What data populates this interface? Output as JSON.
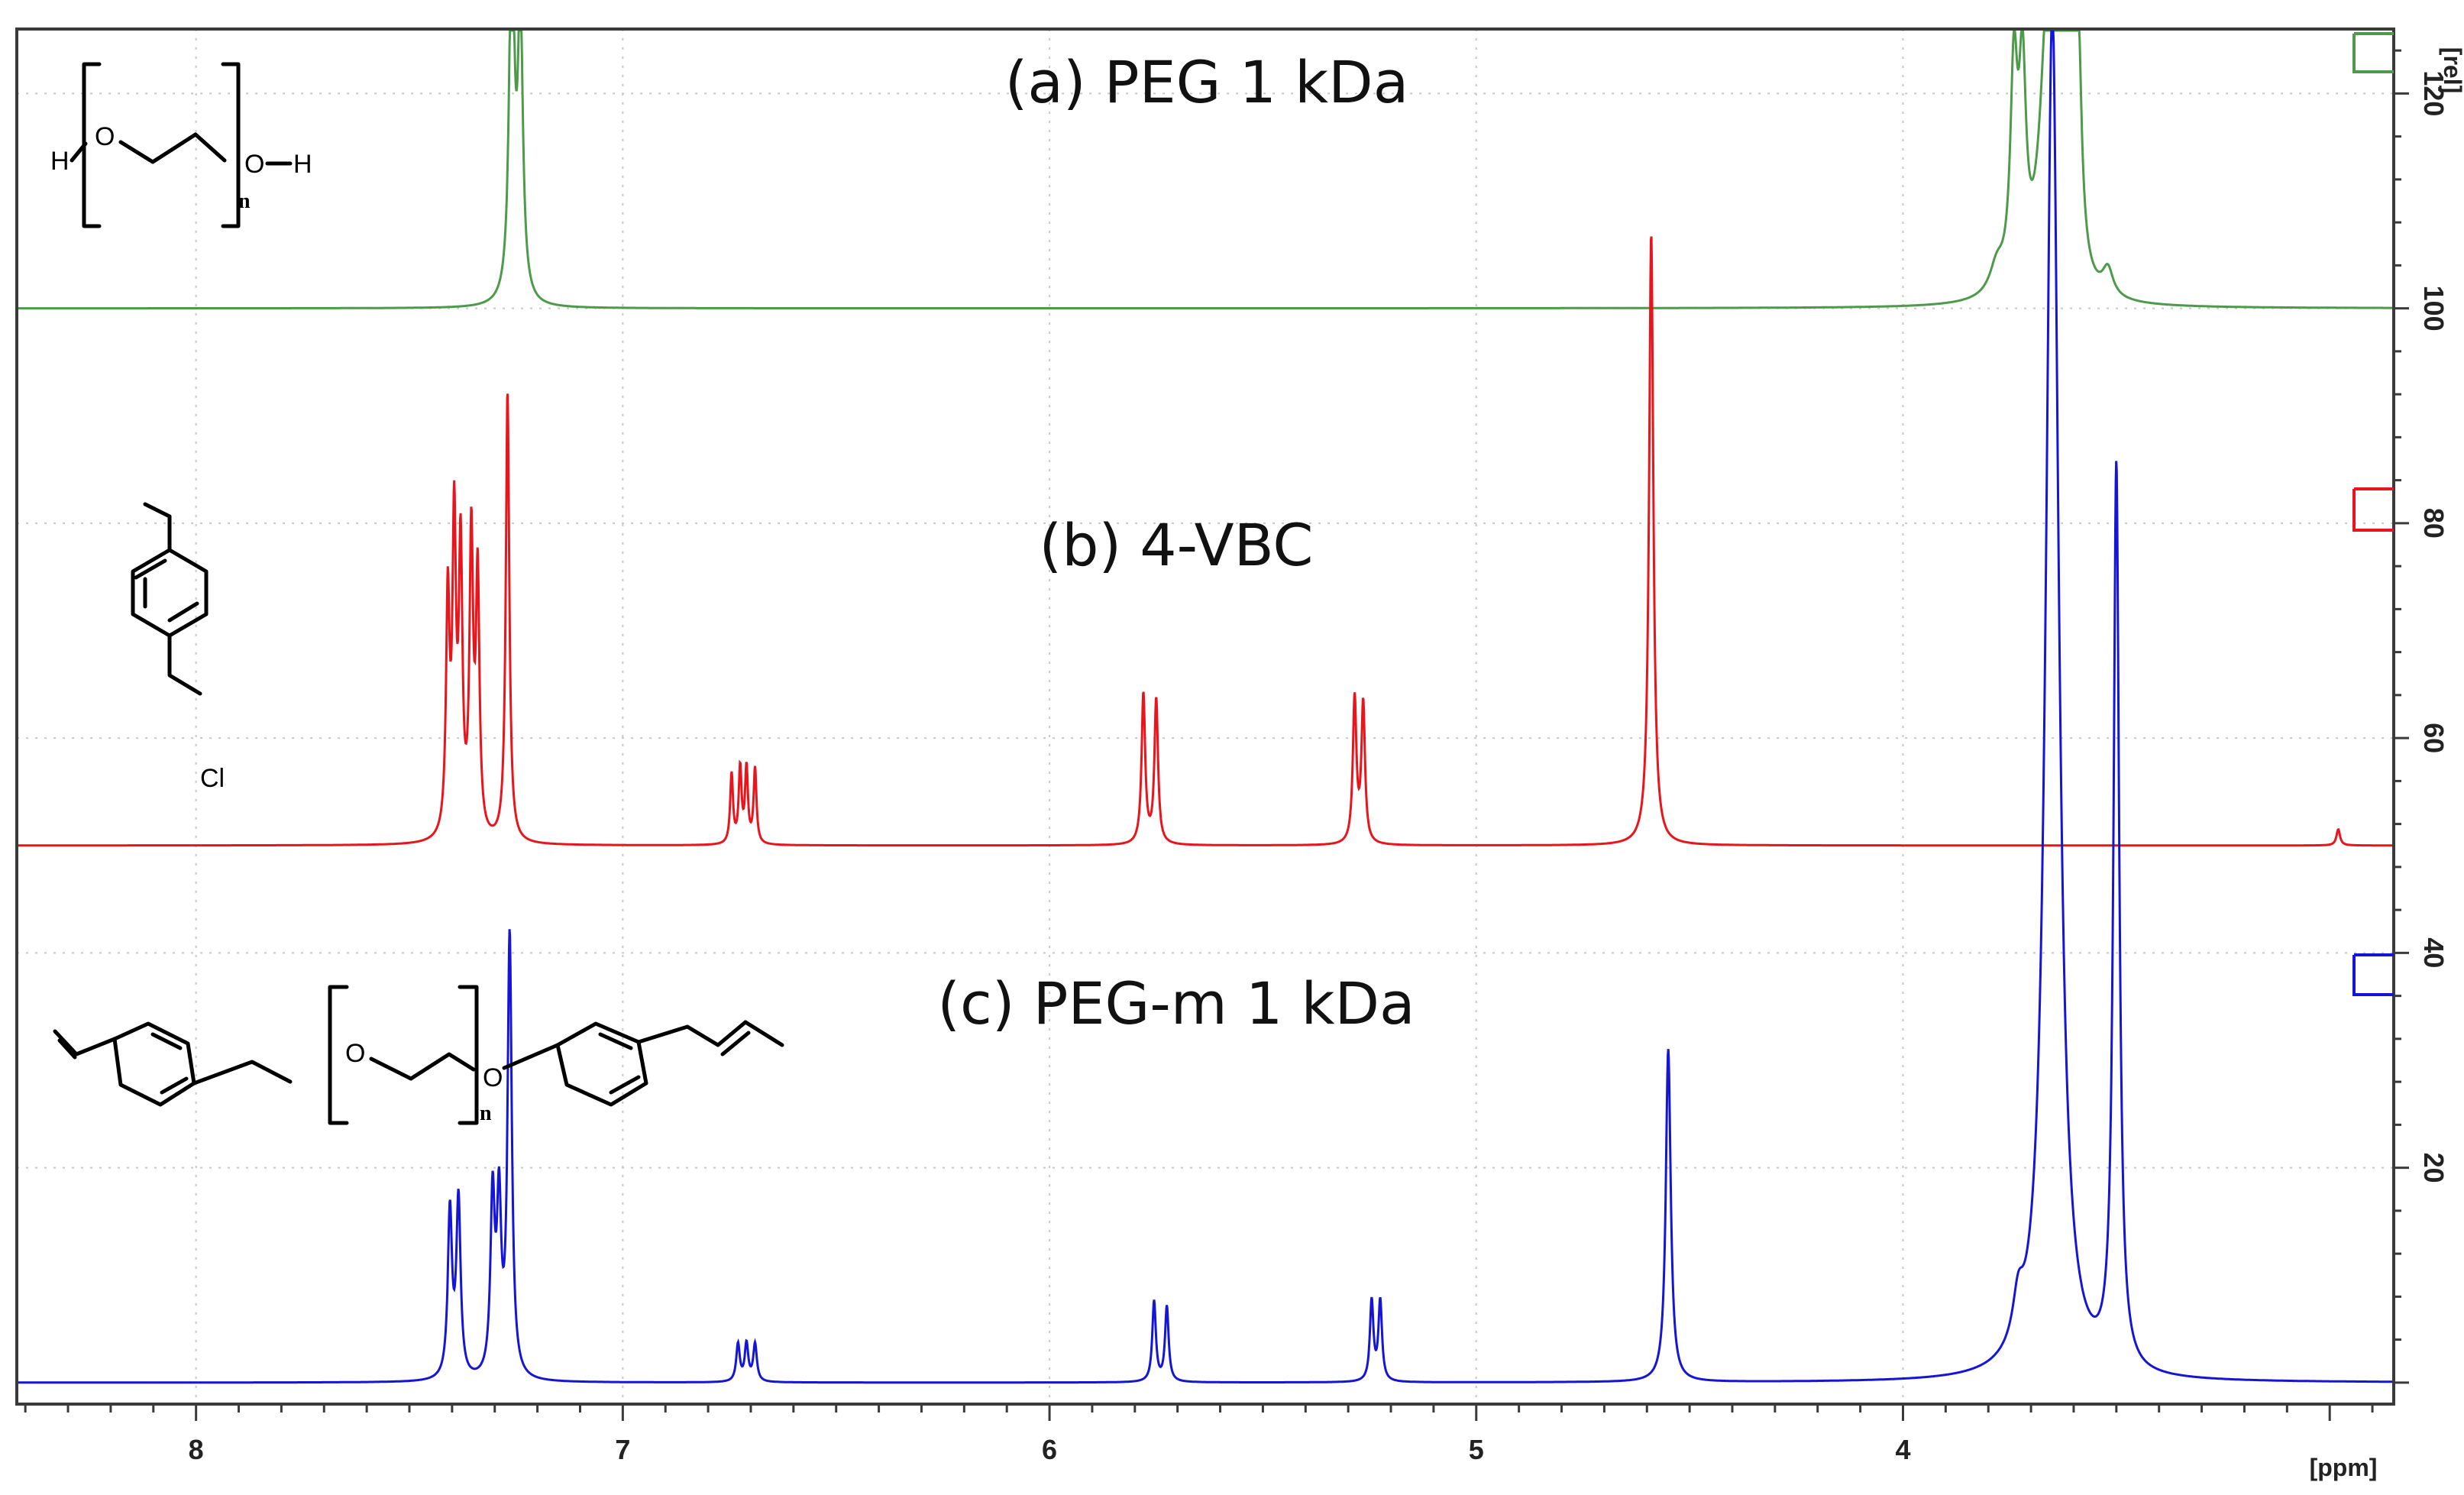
{
  "chart_data": {
    "type": "line",
    "title": "",
    "xlabel": "[ppm]",
    "ylabel": "[rel]",
    "x_reversed": true,
    "xlim": [
      8.42,
      2.85
    ],
    "ylim": [
      -2,
      126
    ],
    "x_ticks": [
      "8",
      "7",
      "6",
      "5",
      "4"
    ],
    "y_ticks": [
      "20",
      "40",
      "60",
      "80",
      "100",
      "120"
    ],
    "grid": true,
    "series": [
      {
        "key": "a",
        "name": "(a) PEG  1 kDa",
        "color": "#4d9a4a",
        "baseline": 100,
        "peaks": [
          {
            "ppm": 7.26,
            "height": 35.5,
            "width": 0.007
          },
          {
            "ppm": 7.24,
            "height": 26.5,
            "width": 0.007
          },
          {
            "ppm": 3.78,
            "height": 2.5,
            "width": 0.02
          },
          {
            "ppm": 3.74,
            "height": 19.5,
            "width": 0.01
          },
          {
            "ppm": 3.72,
            "height": 18.5,
            "width": 0.01
          },
          {
            "ppm": 3.66,
            "height": 26,
            "width": 0.022
          },
          {
            "ppm": 3.635,
            "height": 24,
            "width": 0.01
          },
          {
            "ppm": 3.61,
            "height": 23,
            "width": 0.01
          },
          {
            "ppm": 3.59,
            "height": 21,
            "width": 0.01
          },
          {
            "ppm": 3.52,
            "height": 2.5,
            "width": 0.015
          }
        ]
      },
      {
        "key": "b",
        "name": "(b) 4-VBC",
        "color": "#e8161c",
        "baseline": 50,
        "peaks": [
          {
            "ppm": 7.41,
            "height": 22,
            "width": 0.005
          },
          {
            "ppm": 7.395,
            "height": 28.5,
            "width": 0.005
          },
          {
            "ppm": 7.38,
            "height": 26,
            "width": 0.005
          },
          {
            "ppm": 7.355,
            "height": 27.5,
            "width": 0.005
          },
          {
            "ppm": 7.34,
            "height": 24,
            "width": 0.005
          },
          {
            "ppm": 7.27,
            "height": 42,
            "width": 0.005
          },
          {
            "ppm": 6.745,
            "height": 6.5,
            "width": 0.004
          },
          {
            "ppm": 6.725,
            "height": 7,
            "width": 0.004
          },
          {
            "ppm": 6.71,
            "height": 7,
            "width": 0.004
          },
          {
            "ppm": 6.69,
            "height": 7,
            "width": 0.004
          },
          {
            "ppm": 5.78,
            "height": 14,
            "width": 0.005
          },
          {
            "ppm": 5.75,
            "height": 13.5,
            "width": 0.005
          },
          {
            "ppm": 5.285,
            "height": 13.5,
            "width": 0.005
          },
          {
            "ppm": 5.265,
            "height": 13,
            "width": 0.005
          },
          {
            "ppm": 4.59,
            "height": 57,
            "width": 0.006
          },
          {
            "ppm": 2.98,
            "height": 1.5,
            "width": 0.005
          }
        ]
      },
      {
        "key": "c",
        "name": "(c) PEG-m 1 kDa",
        "color": "#1515d6",
        "baseline": 0,
        "peaks": [
          {
            "ppm": 7.405,
            "height": 15.5,
            "width": 0.006
          },
          {
            "ppm": 7.385,
            "height": 16.5,
            "width": 0.006
          },
          {
            "ppm": 7.305,
            "height": 16.5,
            "width": 0.006
          },
          {
            "ppm": 7.29,
            "height": 15.5,
            "width": 0.006
          },
          {
            "ppm": 7.265,
            "height": 41,
            "width": 0.006
          },
          {
            "ppm": 6.73,
            "height": 3.5,
            "width": 0.005
          },
          {
            "ppm": 6.71,
            "height": 3.5,
            "width": 0.005
          },
          {
            "ppm": 6.69,
            "height": 3.5,
            "width": 0.005
          },
          {
            "ppm": 5.755,
            "height": 7.5,
            "width": 0.005
          },
          {
            "ppm": 5.725,
            "height": 7,
            "width": 0.005
          },
          {
            "ppm": 5.245,
            "height": 7.5,
            "width": 0.005
          },
          {
            "ppm": 5.225,
            "height": 7.5,
            "width": 0.005
          },
          {
            "ppm": 4.55,
            "height": 31,
            "width": 0.007
          },
          {
            "ppm": 3.73,
            "height": 4,
            "width": 0.015
          },
          {
            "ppm": 3.65,
            "height": 128,
            "width": 0.018
          },
          {
            "ppm": 3.5,
            "height": 84,
            "width": 0.008
          }
        ]
      }
    ]
  },
  "structures": {
    "peg": {
      "H_left": "H",
      "O_left": "O",
      "O_right": "O",
      "H_right": "H",
      "n": "n"
    },
    "vbc": {
      "Cl": "Cl"
    },
    "pegm": {
      "O_left": "O",
      "O_right": "O",
      "n": "n"
    }
  }
}
